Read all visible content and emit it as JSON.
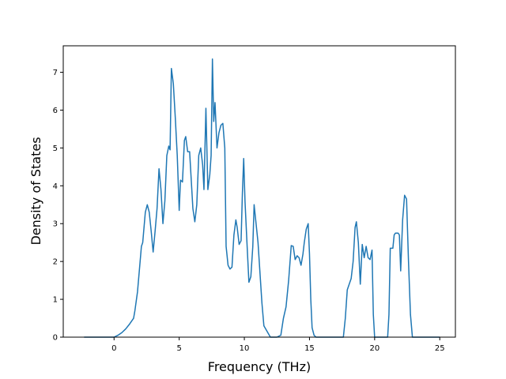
{
  "chart_data": {
    "type": "line",
    "title": "",
    "xlabel": "Frequency (THz)",
    "ylabel": "Density of States",
    "xlim": [
      -3.9,
      26.2
    ],
    "ylim": [
      0,
      7.7
    ],
    "xticks": [
      0,
      5,
      10,
      15,
      20,
      25
    ],
    "yticks": [
      0,
      1,
      2,
      3,
      4,
      5,
      6,
      7
    ],
    "grid": false,
    "legend": "none",
    "line_color": "#1f77b4",
    "series": [
      {
        "x": [
          -2.3,
          -1.0,
          0.0,
          0.3,
          0.6,
          0.9,
          1.2,
          1.5,
          1.6,
          1.8,
          2.0,
          2.1,
          2.2,
          2.4,
          2.55,
          2.7,
          2.85,
          3.0,
          3.15,
          3.3,
          3.45,
          3.6,
          3.75,
          3.9,
          4.05,
          4.2,
          4.3,
          4.4,
          4.55,
          4.7,
          4.85,
          5.0,
          5.1,
          5.25,
          5.4,
          5.5,
          5.65,
          5.8,
          5.9,
          6.05,
          6.2,
          6.35,
          6.5,
          6.65,
          6.8,
          6.9,
          7.05,
          7.2,
          7.35,
          7.45,
          7.55,
          7.65,
          7.75,
          7.9,
          8.05,
          8.2,
          8.35,
          8.5,
          8.6,
          8.75,
          8.9,
          9.05,
          9.2,
          9.35,
          9.45,
          9.6,
          9.75,
          9.85,
          9.95,
          10.05,
          10.2,
          10.35,
          10.5,
          10.65,
          10.75,
          10.9,
          11.05,
          11.2,
          11.35,
          11.5,
          12.0,
          12.5,
          12.8,
          13.0,
          13.2,
          13.4,
          13.6,
          13.75,
          13.9,
          14.05,
          14.2,
          14.35,
          14.5,
          14.6,
          14.75,
          14.9,
          15.0,
          15.1,
          15.2,
          15.35,
          15.5,
          16.0,
          17.0,
          17.6,
          17.75,
          17.9,
          18.05,
          18.2,
          18.35,
          18.5,
          18.6,
          18.75,
          18.9,
          19.05,
          19.2,
          19.35,
          19.5,
          19.65,
          19.8,
          19.9,
          20.0,
          20.5,
          21.0,
          21.1,
          21.2,
          21.3,
          21.4,
          21.5,
          21.6,
          21.7,
          21.8,
          21.9,
          22.0,
          22.15,
          22.3,
          22.45,
          22.6,
          22.75,
          22.9,
          23.5,
          24.5,
          25.0
        ],
        "y": [
          0,
          0,
          0,
          0.05,
          0.12,
          0.22,
          0.35,
          0.5,
          0.7,
          1.2,
          2.0,
          2.4,
          2.5,
          3.3,
          3.5,
          3.3,
          2.8,
          2.25,
          2.8,
          3.4,
          4.45,
          3.9,
          3.0,
          3.6,
          4.8,
          5.05,
          4.95,
          7.1,
          6.7,
          5.8,
          4.8,
          3.35,
          4.15,
          4.1,
          5.2,
          5.3,
          4.9,
          4.9,
          4.3,
          3.4,
          3.05,
          3.5,
          4.8,
          5.0,
          4.55,
          3.9,
          6.05,
          3.9,
          4.3,
          4.8,
          7.35,
          5.7,
          6.2,
          5.0,
          5.4,
          5.6,
          5.65,
          5.0,
          2.4,
          1.9,
          1.8,
          1.85,
          2.7,
          3.1,
          2.9,
          2.45,
          2.55,
          3.8,
          4.72,
          3.6,
          2.5,
          1.45,
          1.6,
          2.4,
          3.5,
          3.0,
          2.5,
          1.7,
          0.9,
          0.3,
          0,
          0,
          0.05,
          0.5,
          0.8,
          1.5,
          2.42,
          2.4,
          2.05,
          2.15,
          2.1,
          1.9,
          2.2,
          2.5,
          2.85,
          3.0,
          2.2,
          1.0,
          0.25,
          0.05,
          0,
          0,
          0,
          0,
          0.5,
          1.25,
          1.4,
          1.55,
          2.0,
          2.9,
          3.05,
          2.5,
          1.4,
          2.45,
          2.1,
          2.4,
          2.1,
          2.05,
          2.3,
          0.6,
          0,
          0,
          0,
          0.6,
          2.35,
          2.35,
          2.35,
          2.7,
          2.75,
          2.75,
          2.75,
          2.7,
          1.75,
          3.1,
          3.75,
          3.65,
          2.0,
          0.6,
          0,
          0,
          0,
          0
        ]
      }
    ]
  }
}
